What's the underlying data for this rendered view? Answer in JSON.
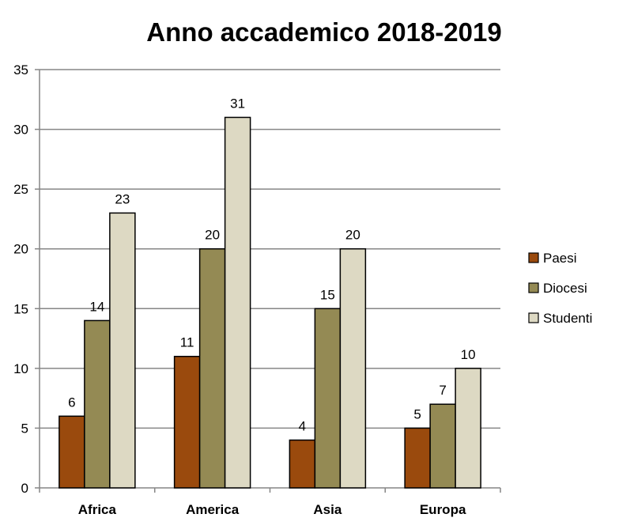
{
  "chart_data": {
    "type": "bar",
    "title": "Anno accademico 2018-2019",
    "xlabel": "",
    "ylabel": "",
    "categories": [
      "Africa",
      "America",
      "Asia",
      "Europa"
    ],
    "series": [
      {
        "name": "Paesi",
        "values": [
          6,
          11,
          4,
          5
        ],
        "color": "#9a4a0d"
      },
      {
        "name": "Diocesi",
        "values": [
          14,
          20,
          15,
          7
        ],
        "color": "#948a54"
      },
      {
        "name": "Studenti",
        "values": [
          23,
          31,
          20,
          10
        ],
        "color": "#ddd9c3"
      }
    ],
    "ylim": [
      0,
      35
    ],
    "yticks": [
      0,
      5,
      10,
      15,
      20,
      25,
      30,
      35
    ],
    "grid": true,
    "legend_position": "right",
    "data_labels": true
  }
}
